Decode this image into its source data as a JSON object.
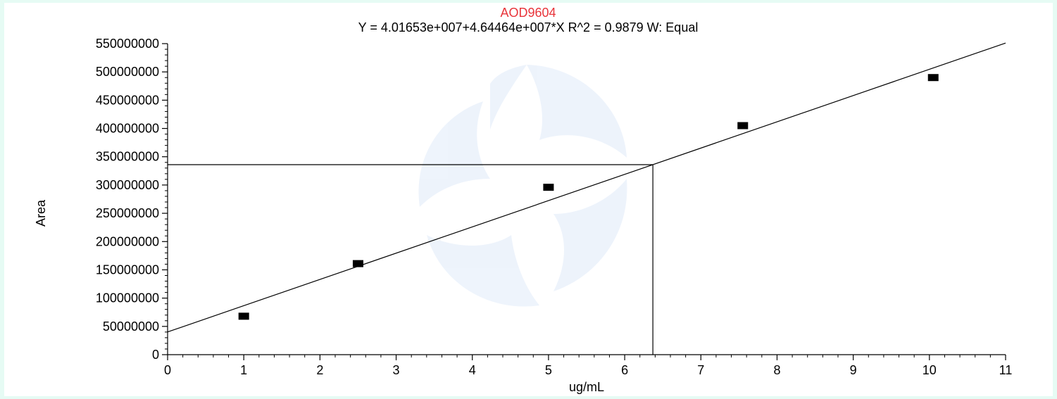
{
  "chart_data": {
    "type": "scatter",
    "title": "AOD9604",
    "subtitle": "Y = 4.01653e+007+4.64464e+007*X   R^2 = 0.9879   W: Equal",
    "xlabel": "ug/mL",
    "ylabel": "Area",
    "xlim": [
      0,
      11
    ],
    "ylim": [
      0,
      550000000
    ],
    "x_ticks": [
      0,
      1,
      2,
      3,
      4,
      5,
      6,
      7,
      8,
      9,
      10,
      11
    ],
    "y_ticks": [
      0,
      50000000,
      100000000,
      150000000,
      200000000,
      250000000,
      300000000,
      350000000,
      400000000,
      450000000,
      500000000,
      550000000
    ],
    "grid": false,
    "series": [
      {
        "x": [
          1.0,
          2.5,
          5.0,
          7.55,
          10.05
        ],
        "y": [
          68000000,
          161000000,
          296000000,
          405000000,
          490000000
        ],
        "marker": "square",
        "color": "#000000"
      }
    ],
    "fit_line": {
      "intercept": 40165300,
      "slope": 46446400,
      "color": "#000000"
    },
    "crosshair": {
      "x": 6.37,
      "y": 336000000
    },
    "colors": {
      "title": "#e8343a",
      "axis": "#000000",
      "background": "#ffffff",
      "border": "#e6fbf4"
    }
  }
}
